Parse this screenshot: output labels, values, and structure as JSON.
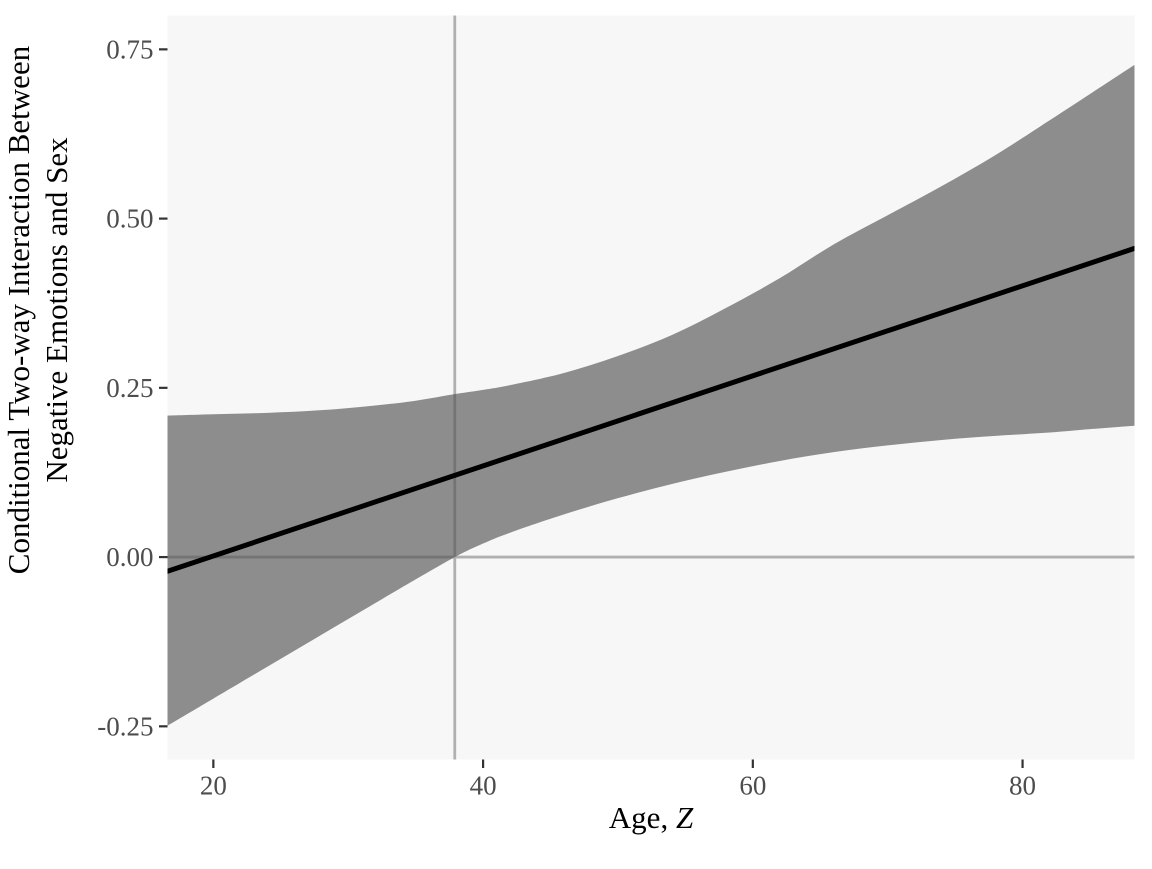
{
  "figure": {
    "description": "Johnson-Neyman interaction plot"
  },
  "colors": {
    "outer_background": "#FFFFFF",
    "panel_background": "#F7F7F7",
    "band_fill": "#555555",
    "band_opacity": 0.65,
    "reference_line": "#B0B0B0",
    "regression_line": "#000000",
    "tick_mark": "#333333",
    "tick_label": "#4D4D4D",
    "axis_title": "#000000"
  },
  "chart_data": {
    "type": "line",
    "title": "",
    "legend": "none",
    "grid": "off",
    "x_axis": {
      "label_regular": "Age, ",
      "label_italic": "Z",
      "ticks": [
        20,
        40,
        60,
        80
      ],
      "tick_labels": [
        "20",
        "40",
        "60",
        "80"
      ],
      "domain": [
        16.6,
        88.3
      ]
    },
    "y_axis": {
      "label_lines": [
        "Conditional Two-way Interaction Between",
        "Negative Emotions and Sex"
      ],
      "ticks": [
        -0.25,
        0.0,
        0.25,
        0.5,
        0.75
      ],
      "tick_labels": [
        "-0.25",
        "0.00",
        "0.25",
        "0.50",
        "0.75"
      ],
      "domain": [
        -0.299,
        0.8
      ]
    },
    "reference_lines": {
      "vertical_x": 37.9,
      "horizontal_y": 0.0
    },
    "regression_line": {
      "x": [
        16.6,
        88.3
      ],
      "y": [
        -0.021,
        0.456
      ]
    },
    "confidence_band": {
      "x": [
        16.6,
        20,
        24,
        28,
        32,
        35,
        38,
        40,
        42,
        46,
        50,
        54,
        58,
        62,
        66,
        70,
        74,
        78,
        82,
        85,
        88.3
      ],
      "upper": [
        0.209,
        0.211,
        0.213,
        0.217,
        0.224,
        0.231,
        0.241,
        0.247,
        0.254,
        0.272,
        0.297,
        0.328,
        0.368,
        0.412,
        0.462,
        0.505,
        0.548,
        0.594,
        0.645,
        0.684,
        0.727
      ],
      "lower": [
        -0.249,
        -0.209,
        -0.162,
        -0.115,
        -0.068,
        -0.033,
        0.001,
        0.02,
        0.036,
        0.063,
        0.087,
        0.108,
        0.126,
        0.142,
        0.155,
        0.165,
        0.173,
        0.179,
        0.184,
        0.189,
        0.194
      ]
    }
  }
}
